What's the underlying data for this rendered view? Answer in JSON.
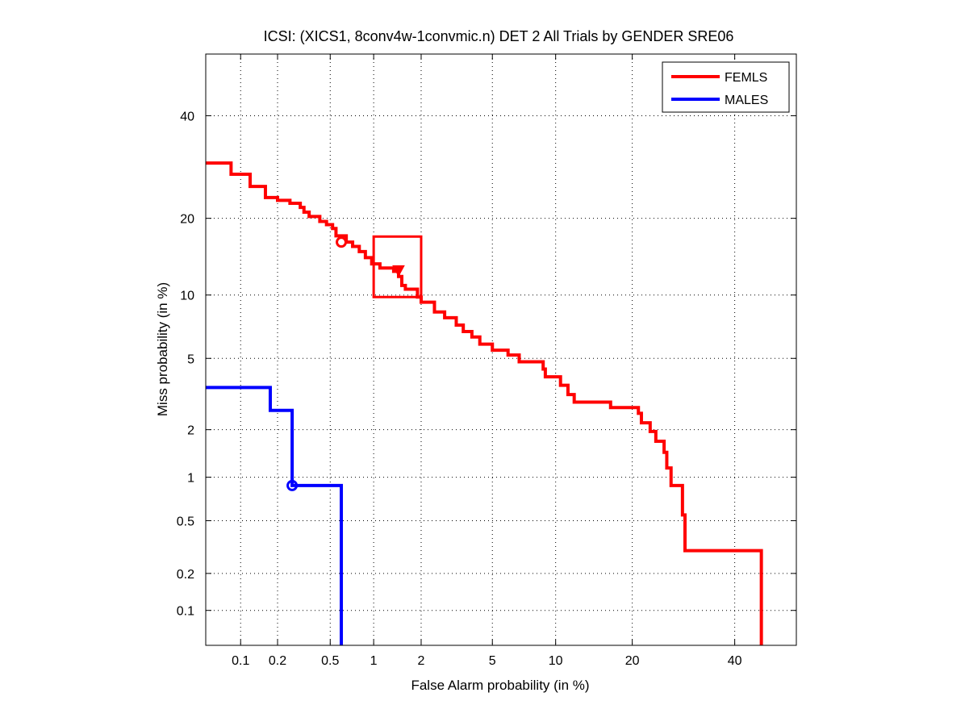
{
  "chart_data": {
    "type": "line",
    "title": "ICSI: (XICS1, 8conv4w-1convmic.n) DET 2 All Trials by GENDER SRE06",
    "xlabel": "False Alarm probability (in %)",
    "ylabel": "Miss probability (in %)",
    "scale": "normal-deviate (probit) on both axes",
    "xlim": [
      0.05,
      54
    ],
    "ylim": [
      0.05,
      54
    ],
    "xticks": [
      0.1,
      0.2,
      0.5,
      1,
      2,
      5,
      10,
      20,
      40
    ],
    "xtick_labels": [
      "0.1",
      "0.2",
      "0.5",
      "1",
      "2",
      "5",
      "10",
      "20",
      "40"
    ],
    "yticks": [
      0.1,
      0.2,
      0.5,
      1,
      2,
      5,
      10,
      20,
      40
    ],
    "ytick_labels": [
      "0.1",
      "0.2",
      "0.5",
      "1",
      "2",
      "5",
      "10",
      "20",
      "40"
    ],
    "grid": true,
    "legend_position": "top-right",
    "series": [
      {
        "name": "FEMLS",
        "color": "#ff0000",
        "line": [
          [
            0.05,
            30.0
          ],
          [
            0.083,
            30.0
          ],
          [
            0.083,
            27.8
          ],
          [
            0.12,
            27.8
          ],
          [
            0.12,
            25.5
          ],
          [
            0.16,
            25.5
          ],
          [
            0.16,
            23.5
          ],
          [
            0.2,
            23.5
          ],
          [
            0.2,
            23.0
          ],
          [
            0.25,
            23.0
          ],
          [
            0.25,
            22.5
          ],
          [
            0.3,
            22.5
          ],
          [
            0.3,
            21.8
          ],
          [
            0.32,
            21.8
          ],
          [
            0.32,
            21.0
          ],
          [
            0.35,
            21.0
          ],
          [
            0.35,
            20.3
          ],
          [
            0.42,
            20.3
          ],
          [
            0.42,
            19.5
          ],
          [
            0.47,
            19.5
          ],
          [
            0.47,
            19.0
          ],
          [
            0.52,
            19.0
          ],
          [
            0.52,
            18.4
          ],
          [
            0.55,
            18.4
          ],
          [
            0.55,
            17.3
          ],
          [
            0.65,
            17.3
          ],
          [
            0.65,
            16.4
          ],
          [
            0.72,
            16.4
          ],
          [
            0.72,
            15.8
          ],
          [
            0.8,
            15.8
          ],
          [
            0.8,
            15.1
          ],
          [
            0.88,
            15.1
          ],
          [
            0.88,
            14.3
          ],
          [
            0.97,
            14.3
          ],
          [
            0.97,
            13.5
          ],
          [
            1.1,
            13.5
          ],
          [
            1.1,
            13.0
          ],
          [
            1.35,
            13.0
          ],
          [
            1.35,
            12.6
          ],
          [
            1.45,
            12.6
          ],
          [
            1.45,
            12.0
          ],
          [
            1.52,
            12.0
          ],
          [
            1.52,
            11.0
          ],
          [
            1.6,
            11.0
          ],
          [
            1.6,
            10.6
          ],
          [
            1.9,
            10.6
          ],
          [
            1.9,
            9.8
          ],
          [
            2.0,
            9.8
          ],
          [
            2.0,
            9.3
          ],
          [
            2.4,
            9.3
          ],
          [
            2.4,
            8.4
          ],
          [
            2.75,
            8.4
          ],
          [
            2.75,
            7.9
          ],
          [
            3.2,
            7.9
          ],
          [
            3.2,
            7.3
          ],
          [
            3.5,
            7.3
          ],
          [
            3.5,
            6.8
          ],
          [
            3.9,
            6.8
          ],
          [
            3.9,
            6.4
          ],
          [
            4.3,
            6.4
          ],
          [
            4.3,
            5.9
          ],
          [
            5.0,
            5.9
          ],
          [
            5.0,
            5.5
          ],
          [
            6.0,
            5.5
          ],
          [
            6.0,
            5.2
          ],
          [
            6.8,
            5.2
          ],
          [
            6.8,
            4.8
          ],
          [
            8.8,
            4.8
          ],
          [
            8.8,
            4.4
          ],
          [
            9.0,
            4.4
          ],
          [
            9.0,
            4.0
          ],
          [
            10.5,
            4.0
          ],
          [
            10.5,
            3.6
          ],
          [
            11.3,
            3.6
          ],
          [
            11.3,
            3.2
          ],
          [
            12.0,
            3.2
          ],
          [
            12.0,
            2.9
          ],
          [
            16.7,
            2.9
          ],
          [
            16.7,
            2.7
          ],
          [
            21.0,
            2.7
          ],
          [
            21.0,
            2.5
          ],
          [
            21.5,
            2.5
          ],
          [
            21.5,
            2.2
          ],
          [
            23.0,
            2.2
          ],
          [
            23.0,
            1.95
          ],
          [
            24.0,
            1.95
          ],
          [
            24.0,
            1.7
          ],
          [
            25.5,
            1.7
          ],
          [
            25.5,
            1.45
          ],
          [
            26.0,
            1.45
          ],
          [
            26.0,
            1.15
          ],
          [
            26.8,
            1.15
          ],
          [
            26.8,
            0.88
          ],
          [
            29.0,
            0.88
          ],
          [
            29.0,
            0.55
          ],
          [
            29.5,
            0.55
          ],
          [
            29.5,
            0.3
          ],
          [
            46.0,
            0.3
          ],
          [
            46.0,
            0.05
          ]
        ],
        "markers": [
          {
            "label": "circle",
            "x": 0.6,
            "y": 16.4
          },
          {
            "label": "triangle",
            "x": 1.45,
            "y": 12.6
          }
        ],
        "box": {
          "x_range": [
            1.0,
            2.0
          ],
          "y_range": [
            9.8,
            17.2
          ]
        }
      },
      {
        "name": "MALES",
        "color": "#0000ff",
        "line": [
          [
            0.05,
            3.5
          ],
          [
            0.175,
            3.5
          ],
          [
            0.175,
            2.6
          ],
          [
            0.26,
            2.6
          ],
          [
            0.26,
            0.88
          ],
          [
            0.6,
            0.88
          ],
          [
            0.6,
            0.05
          ]
        ],
        "markers": [
          {
            "label": "circle",
            "x": 0.26,
            "y": 0.88
          }
        ]
      }
    ]
  }
}
